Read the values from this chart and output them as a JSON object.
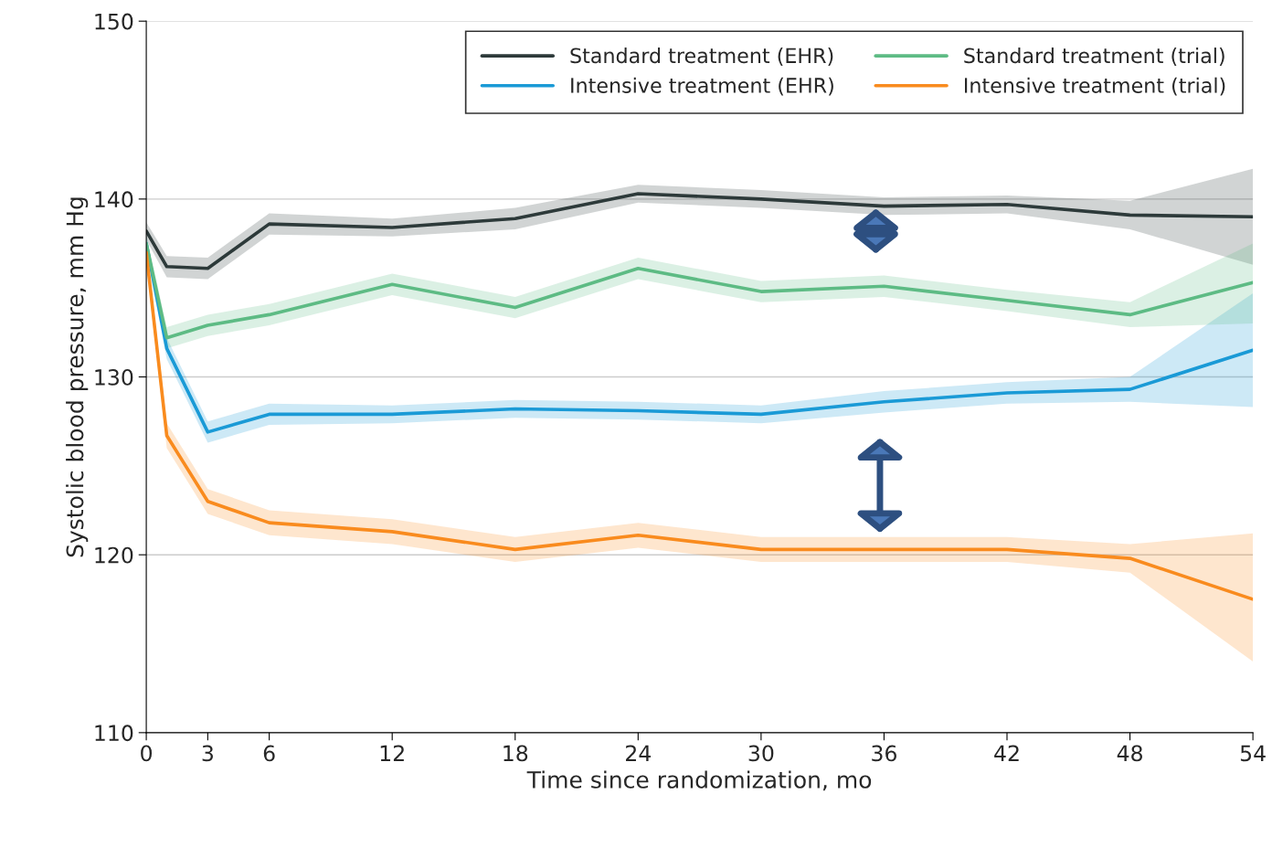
{
  "chart_data": {
    "type": "line",
    "xlabel": "Time since randomization, mo",
    "ylabel": "Systolic blood pressure, mm Hg",
    "x": [
      0,
      1,
      3,
      6,
      12,
      18,
      24,
      30,
      36,
      42,
      48,
      54
    ],
    "series": [
      {
        "name": "Standard treatment (EHR)",
        "color": "#2d3a3a",
        "values": [
          138.2,
          136.2,
          136.1,
          138.6,
          138.4,
          138.9,
          140.3,
          140.0,
          139.6,
          139.7,
          139.1,
          139.0
        ],
        "lower": [
          137.7,
          135.6,
          135.5,
          138.0,
          137.9,
          138.3,
          139.8,
          139.5,
          139.1,
          139.2,
          138.3,
          136.3
        ],
        "upper": [
          138.7,
          136.8,
          136.7,
          139.2,
          138.9,
          139.5,
          140.8,
          140.5,
          140.1,
          140.2,
          139.9,
          141.7
        ]
      },
      {
        "name": "Intensive treatment (EHR)",
        "color": "#1a9ad6",
        "values": [
          137.5,
          131.6,
          126.9,
          127.9,
          127.9,
          128.2,
          128.1,
          127.9,
          128.6,
          129.1,
          129.3,
          131.5
        ],
        "lower": [
          137.0,
          131.0,
          126.3,
          127.3,
          127.4,
          127.7,
          127.6,
          127.4,
          128.0,
          128.5,
          128.6,
          128.3
        ],
        "upper": [
          138.0,
          132.2,
          127.5,
          128.5,
          128.4,
          128.7,
          128.6,
          128.4,
          129.2,
          129.7,
          130.0,
          134.7
        ]
      },
      {
        "name": "Standard treatment (trial)",
        "color": "#5dbb84",
        "values": [
          137.5,
          132.2,
          132.9,
          133.5,
          135.2,
          133.9,
          136.1,
          134.8,
          135.1,
          134.3,
          133.5,
          135.3
        ],
        "lower": [
          137.0,
          131.6,
          132.3,
          132.9,
          134.6,
          133.3,
          135.5,
          134.2,
          134.5,
          133.7,
          132.8,
          133.0
        ],
        "upper": [
          138.0,
          132.8,
          133.5,
          134.1,
          135.8,
          134.5,
          136.7,
          135.4,
          135.7,
          134.9,
          134.2,
          137.5
        ]
      },
      {
        "name": "Intensive treatment (trial)",
        "color": "#f98b1e",
        "values": [
          137.0,
          126.7,
          123.0,
          121.8,
          121.3,
          120.3,
          121.1,
          120.3,
          120.3,
          120.3,
          119.8,
          117.5
        ],
        "lower": [
          136.4,
          126.0,
          122.3,
          121.1,
          120.6,
          119.6,
          120.4,
          119.6,
          119.6,
          119.6,
          119.0,
          114.0
        ],
        "upper": [
          137.6,
          127.4,
          123.7,
          122.5,
          122.0,
          121.0,
          121.8,
          121.0,
          121.0,
          121.0,
          120.6,
          121.2
        ]
      }
    ],
    "xlim": [
      0,
      54
    ],
    "xticks": [
      0,
      3,
      6,
      12,
      18,
      24,
      30,
      36,
      42,
      48,
      54
    ],
    "ylim": [
      110,
      150
    ],
    "yticks": [
      110,
      120,
      130,
      140,
      150
    ],
    "grid": "y",
    "legend": "top right",
    "marker": "none",
    "line_style": "solid"
  }
}
